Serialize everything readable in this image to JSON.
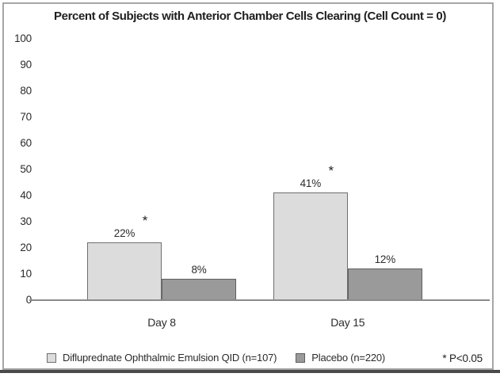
{
  "chart_data": {
    "type": "bar",
    "title": "Percent of Subjects with Anterior Chamber Cells Clearing (Cell Count = 0)",
    "categories": [
      "Day 8",
      "Day 15"
    ],
    "series": [
      {
        "name": "Difluprednate Ophthalmic Emulsion QID (n=107)",
        "values": [
          22,
          41
        ],
        "labels": [
          "22%",
          "41%"
        ],
        "color": "#dcdcdc",
        "border_color": "#6f6f6f",
        "significant": [
          true,
          true
        ]
      },
      {
        "name": "Placebo (n=220)",
        "values": [
          8,
          12
        ],
        "labels": [
          "8%",
          "12%"
        ],
        "color": "#9a9a9a",
        "border_color": "#5f5f5f",
        "significant": [
          false,
          false
        ]
      }
    ],
    "ylim": [
      0,
      100
    ],
    "yticks": [
      100,
      90,
      80,
      70,
      60,
      50,
      40,
      30,
      20,
      10,
      0
    ],
    "ytick_labels": [
      "100",
      "90",
      "80",
      "70",
      "60",
      "50",
      "40",
      "30",
      "20",
      "10",
      "0"
    ],
    "grid": false,
    "legend_position": "bottom",
    "significance_marker": "*",
    "footnote": "* P<0.05"
  }
}
